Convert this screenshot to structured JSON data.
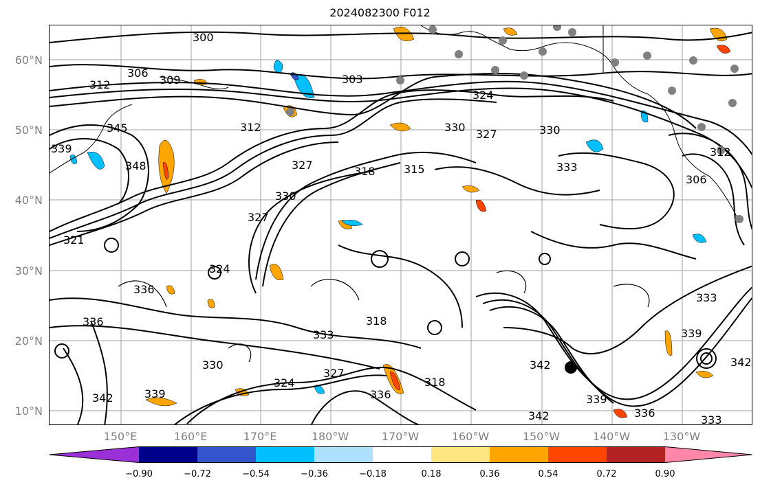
{
  "title": "2024082300 F012",
  "lat_labels": [
    "60°N",
    "50°N",
    "40°N",
    "30°N",
    "20°N",
    "10°N"
  ],
  "lon_labels": [
    "150°E",
    "160°E",
    "170°E",
    "180°W",
    "170°W",
    "160°W",
    "150°W",
    "140°W",
    "130°W"
  ],
  "contour_labels": [
    "300",
    "306",
    "309",
    "312",
    "303",
    "324",
    "345",
    "312",
    "330",
    "327",
    "330",
    "339",
    "348",
    "333",
    "318",
    "315",
    "306",
    "312",
    "327",
    "330",
    "327",
    "321",
    "324",
    "336",
    "336",
    "333",
    "330",
    "318",
    "333",
    "327",
    "324",
    "339",
    "342",
    "318",
    "342",
    "342",
    "339",
    "336",
    "342",
    "339",
    "333",
    "336"
  ],
  "colorbar": {
    "tick_labels": [
      "−0.90",
      "−0.72",
      "−0.54",
      "−0.36",
      "−0.18",
      "0.18",
      "0.36",
      "0.54",
      "0.72",
      "0.90"
    ],
    "colors": [
      "#9b30d9",
      "#00008b",
      "#3355cc",
      "#00bfff",
      "#aee0ff",
      "#ffffff",
      "#ffe680",
      "#ffa500",
      "#ff4500",
      "#b22222",
      "#ff88aa"
    ],
    "min_value": -0.9,
    "max_value": 0.9,
    "extend": "both"
  },
  "colors": {
    "frame": "#000000",
    "grid": "#808080",
    "axis_label": "#808080",
    "contour": "#000000",
    "station_marker": "#808080"
  }
}
